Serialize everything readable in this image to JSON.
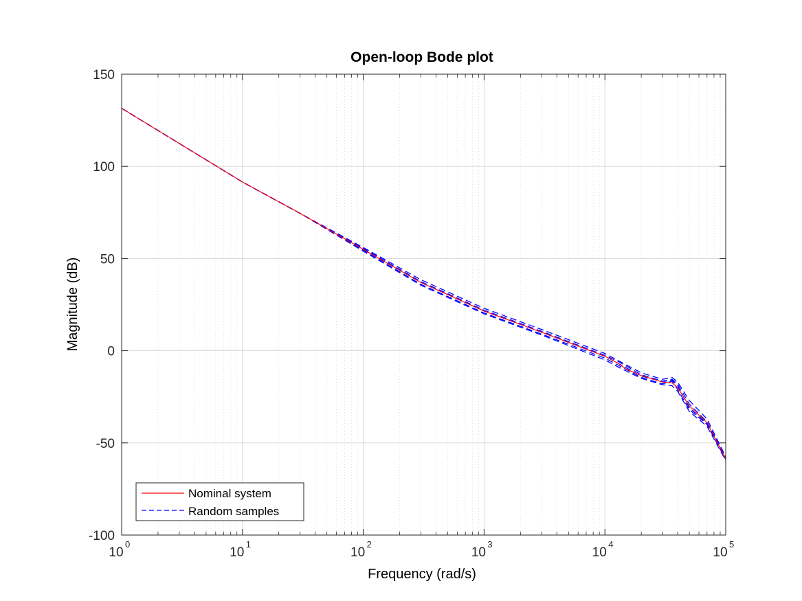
{
  "chart_data": {
    "type": "line",
    "title": "Open-loop Bode plot",
    "xlabel": "Frequency  (rad/s)",
    "ylabel": "Magnitude (dB)",
    "xscale": "log",
    "xlim": [
      1,
      100000
    ],
    "ylim": [
      -100,
      150
    ],
    "grid": true,
    "x_ticks": [
      {
        "base": "10",
        "exp": "0"
      },
      {
        "base": "10",
        "exp": "1"
      },
      {
        "base": "10",
        "exp": "2"
      },
      {
        "base": "10",
        "exp": "3"
      },
      {
        "base": "10",
        "exp": "4"
      },
      {
        "base": "10",
        "exp": "5"
      }
    ],
    "y_ticks": [
      -100,
      -50,
      0,
      50,
      100,
      150
    ],
    "legend_position": "bottom-left",
    "series": [
      {
        "name": "Nominal system",
        "style": "solid",
        "color": "#ff0000",
        "points": [
          [
            1,
            131.5
          ],
          [
            10,
            91.5
          ],
          [
            30,
            74.5
          ],
          [
            100,
            55.0
          ],
          [
            300,
            37.0
          ],
          [
            1000,
            21.5
          ],
          [
            3000,
            10.0
          ],
          [
            10000,
            -3.0
          ],
          [
            13000,
            -7.0
          ],
          [
            15000,
            -10.0
          ],
          [
            20000,
            -13.5
          ],
          [
            30000,
            -17.0
          ],
          [
            36000,
            -17.5
          ],
          [
            40000,
            -20.0
          ],
          [
            50000,
            -30.0
          ],
          [
            70000,
            -39.0
          ],
          [
            100000,
            -58.5
          ]
        ]
      },
      {
        "name": "Random samples",
        "style": "dashed",
        "color": "#0000ff",
        "samples": [
          [
            [
              1,
              131.5
            ],
            [
              10,
              91.5
            ],
            [
              30,
              74.5
            ],
            [
              100,
              55.5
            ],
            [
              300,
              37.5
            ],
            [
              1000,
              22.0
            ],
            [
              3000,
              10.5
            ],
            [
              10000,
              -2.5
            ],
            [
              13000,
              -6.0
            ],
            [
              20000,
              -13.0
            ],
            [
              30000,
              -16.5
            ],
            [
              36000,
              -15.5
            ],
            [
              40000,
              -18.0
            ],
            [
              50000,
              -29.0
            ],
            [
              70000,
              -38.5
            ],
            [
              100000,
              -58.0
            ]
          ],
          [
            [
              1,
              131.5
            ],
            [
              10,
              91.5
            ],
            [
              30,
              74.5
            ],
            [
              100,
              54.5
            ],
            [
              300,
              36.0
            ],
            [
              1000,
              20.5
            ],
            [
              3000,
              9.0
            ],
            [
              10000,
              -4.0
            ],
            [
              13000,
              -8.0
            ],
            [
              20000,
              -14.5
            ],
            [
              30000,
              -18.0
            ],
            [
              36000,
              -16.5
            ],
            [
              40000,
              -21.0
            ],
            [
              50000,
              -32.0
            ],
            [
              70000,
              -40.0
            ],
            [
              100000,
              -59.0
            ]
          ],
          [
            [
              1,
              131.5
            ],
            [
              10,
              91.5
            ],
            [
              30,
              74.5
            ],
            [
              100,
              56.0
            ],
            [
              300,
              38.5
            ],
            [
              1000,
              23.0
            ],
            [
              3000,
              11.5
            ],
            [
              10000,
              -1.5
            ],
            [
              13000,
              -5.5
            ],
            [
              20000,
              -12.0
            ],
            [
              30000,
              -15.5
            ],
            [
              36000,
              -14.5
            ],
            [
              40000,
              -17.0
            ],
            [
              50000,
              -27.0
            ],
            [
              70000,
              -37.0
            ],
            [
              100000,
              -57.5
            ]
          ],
          [
            [
              1,
              131.5
            ],
            [
              10,
              91.5
            ],
            [
              30,
              74.5
            ],
            [
              100,
              54.0
            ],
            [
              300,
              35.5
            ],
            [
              1000,
              20.0
            ],
            [
              3000,
              8.5
            ],
            [
              10000,
              -5.0
            ],
            [
              13000,
              -9.0
            ],
            [
              20000,
              -15.0
            ],
            [
              30000,
              -18.5
            ],
            [
              36000,
              -19.0
            ],
            [
              40000,
              -22.0
            ],
            [
              50000,
              -33.0
            ],
            [
              70000,
              -41.0
            ],
            [
              100000,
              -59.5
            ]
          ],
          [
            [
              1,
              131.5
            ],
            [
              10,
              91.5
            ],
            [
              30,
              74.5
            ],
            [
              100,
              55.0
            ],
            [
              300,
              37.0
            ],
            [
              1000,
              21.5
            ],
            [
              3000,
              10.0
            ],
            [
              10000,
              -3.0
            ],
            [
              13000,
              -7.0
            ],
            [
              20000,
              -13.8
            ],
            [
              30000,
              -16.8
            ],
            [
              36000,
              -16.0
            ],
            [
              40000,
              -19.0
            ],
            [
              50000,
              -31.0
            ],
            [
              70000,
              -39.5
            ],
            [
              100000,
              -58.5
            ]
          ]
        ]
      }
    ]
  }
}
